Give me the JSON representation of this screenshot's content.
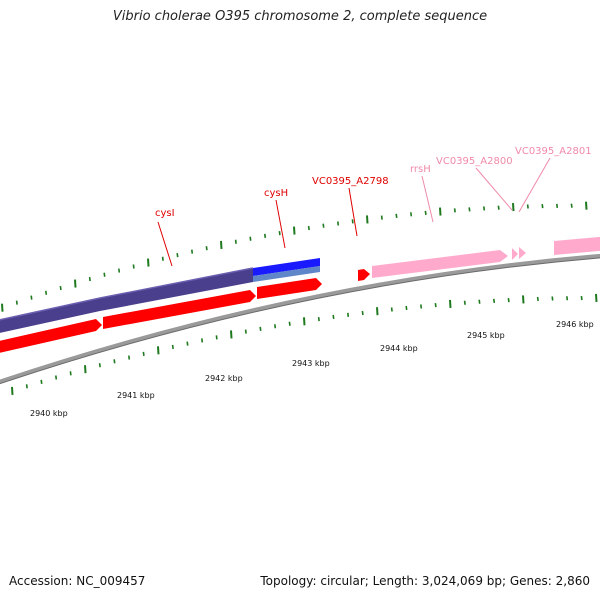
{
  "title": "Vibrio cholerae O395 chromosome 2, complete sequence",
  "footer": {
    "accession": "Accession: NC_009457",
    "stats": "Topology: circular; Length: 3,024,069 bp; Genes: 2,860"
  },
  "colors": {
    "backbone": "#8a8a8a",
    "tick": "#1f7a1f",
    "cds_forward": "#ff0000",
    "cds_complement": "#4a3f8c",
    "rrna": "#ffaacc",
    "highlight": "#1a1aff",
    "highlight_light": "#5f86c8",
    "label_red": "#e00000",
    "label_pink": "#f08aa8"
  },
  "scale_labels": [
    "2940 kbp",
    "2941 kbp",
    "2942 kbp",
    "2943 kbp",
    "2944 kbp",
    "2945 kbp",
    "2946 kbp"
  ],
  "gene_labels": [
    {
      "text": "cysI",
      "color": "label_red"
    },
    {
      "text": "cysH",
      "color": "label_red"
    },
    {
      "text": "VC0395_A2798",
      "color": "label_red"
    },
    {
      "text": "rrsH",
      "color": "label_pink"
    },
    {
      "text": "VC0395_A2800",
      "color": "label_pink"
    },
    {
      "text": "VC0395_A2801",
      "color": "label_pink"
    }
  ]
}
